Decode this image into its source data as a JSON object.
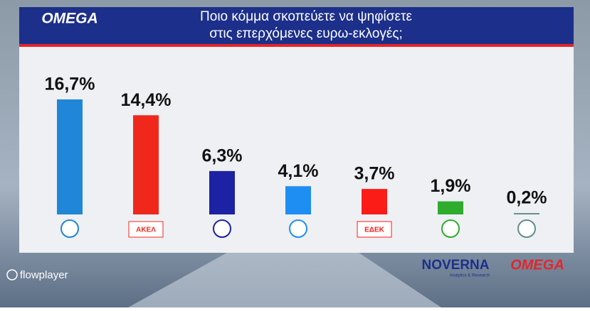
{
  "chart_data": {
    "type": "bar",
    "title": [
      "Ποιο κόμμα σκοπεύετε να ψηφίσετε",
      "στις επερχόμενες ευρω-εκλογές;"
    ],
    "categories": [
      null,
      "ΑΚΕΛ",
      null,
      null,
      "ΕΔΕΚ",
      null,
      null
    ],
    "values": [
      16.7,
      14.4,
      6.3,
      4.1,
      3.7,
      1.9,
      0.2
    ],
    "value_labels": [
      "16,7%",
      "14,4%",
      "6,3%",
      "4,1%",
      "3,7%",
      "1,9%",
      "0,2%"
    ],
    "colors": [
      "#1f86d8",
      "#f0281c",
      "#1c22a3",
      "#1f8ef2",
      "#fb1c18",
      "#2eac2e",
      "#5f8f8c"
    ]
  },
  "branding": {
    "channel": "OMEGA",
    "pollster": "NOVERNA",
    "pollster_tagline": "Analytics & Research",
    "footer_channel": "OMEGA",
    "player": "flowplayer"
  }
}
